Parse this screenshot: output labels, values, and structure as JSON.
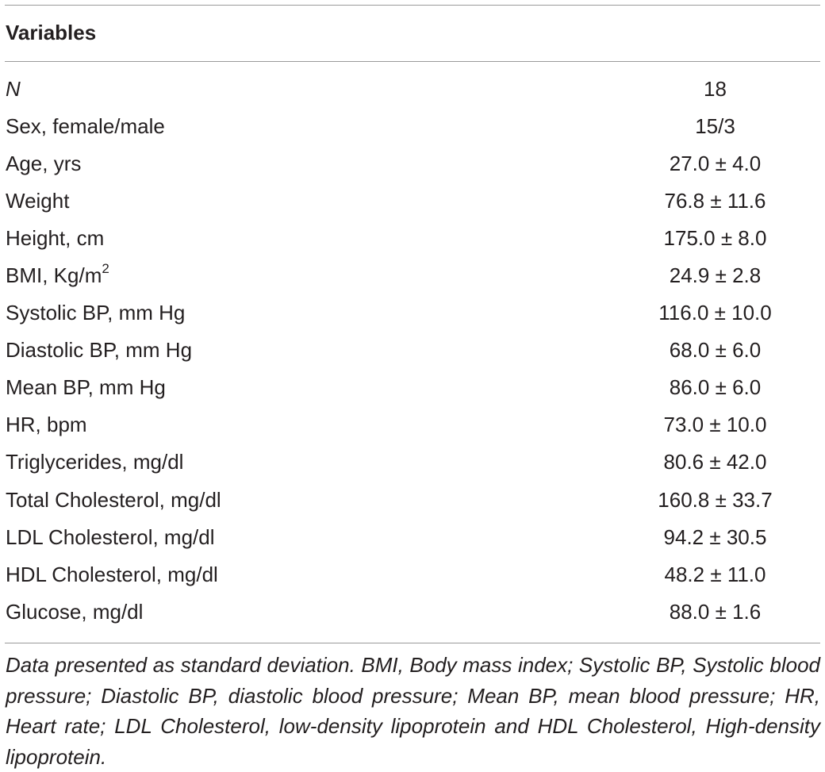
{
  "table": {
    "header": "Variables",
    "rows": [
      {
        "label": "N",
        "value": "18"
      },
      {
        "label": "Sex, female/male",
        "value": "15/3"
      },
      {
        "label": "Age, yrs",
        "value": "27.0 ± 4.0"
      },
      {
        "label": "Weight",
        "value": "76.8 ± 11.6"
      },
      {
        "label": "Height, cm",
        "value": "175.0 ± 8.0"
      },
      {
        "label": "BMI, Kg/m",
        "label_sup": "2",
        "value": "24.9 ± 2.8"
      },
      {
        "label": "Systolic BP, mm Hg",
        "value": "116.0 ± 10.0"
      },
      {
        "label": "Diastolic BP, mm Hg",
        "value": "68.0 ± 6.0"
      },
      {
        "label": "Mean BP, mm Hg",
        "value": "86.0 ± 6.0"
      },
      {
        "label": "HR, bpm",
        "value": "73.0 ± 10.0"
      },
      {
        "label": "Triglycerides, mg/dl",
        "value": "80.6 ± 42.0"
      },
      {
        "label": "Total Cholesterol, mg/dl",
        "value": "160.8 ± 33.7"
      },
      {
        "label": "LDL Cholesterol, mg/dl",
        "value": "94.2 ± 30.5"
      },
      {
        "label": "HDL Cholesterol, mg/dl",
        "value": "48.2 ± 11.0"
      },
      {
        "label": "Glucose, mg/dl",
        "value": "88.0 ± 1.6"
      }
    ],
    "footnote": "Data presented as standard deviation. BMI, Body mass index; Systolic BP, Systolic blood pressure; Diastolic BP, diastolic blood pressure; Mean BP, mean blood pressure; HR, Heart rate; LDL Cholesterol, low-density lipoprotein and HDL Cholesterol, High-density lipoprotein."
  }
}
